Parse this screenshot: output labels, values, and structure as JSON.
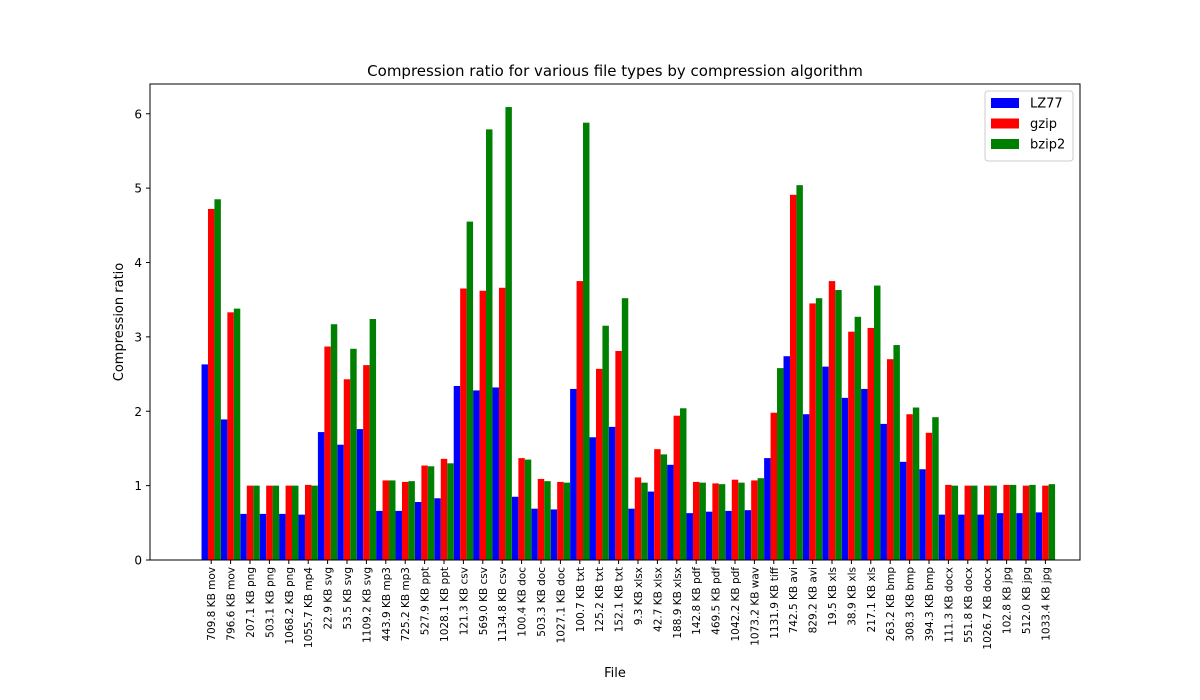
{
  "chart_data": {
    "type": "bar",
    "title": "Compression ratio for various file types by compression algorithm",
    "xlabel": "File",
    "ylabel": "Compression ratio",
    "ylim": [
      0,
      6.4
    ],
    "yticks": [
      0,
      1,
      2,
      3,
      4,
      5,
      6
    ],
    "grid": false,
    "legend_position": "top-right",
    "categories": [
      "709.8 KB mov",
      "796.6 KB mov",
      "207.1 KB png",
      "503.1 KB png",
      "1068.2 KB png",
      "1055.7 KB mp4",
      "22.9 KB svg",
      "53.5 KB svg",
      "1109.2 KB svg",
      "443.9 KB mp3",
      "725.2 KB mp3",
      "527.9 KB ppt",
      "1028.1 KB ppt",
      "121.3 KB csv",
      "569.0 KB csv",
      "1134.8 KB csv",
      "100.4 KB doc",
      "503.3 KB doc",
      "1027.1 KB doc",
      "100.7 KB txt",
      "125.2 KB txt",
      "152.1 KB txt",
      "9.3 KB xlsx",
      "42.7 KB xlsx",
      "188.9 KB xlsx",
      "142.8 KB pdf",
      "469.5 KB pdf",
      "1042.2 KB pdf",
      "1073.2 KB wav",
      "1131.9 KB tiff",
      "742.5 KB avi",
      "829.2 KB avi",
      "19.5 KB xls",
      "38.9 KB xls",
      "217.1 KB xls",
      "263.2 KB bmp",
      "308.3 KB bmp",
      "394.3 KB bmp",
      "111.3 KB docx",
      "551.8 KB docx",
      "1026.7 KB docx",
      "102.8 KB jpg",
      "512.0 KB jpg",
      "1033.4 KB jpg"
    ],
    "series": [
      {
        "name": "LZ77",
        "color": "#0000ff",
        "values": [
          2.63,
          1.89,
          0.62,
          0.62,
          0.62,
          0.61,
          1.72,
          1.55,
          1.76,
          0.66,
          0.66,
          0.78,
          0.83,
          2.34,
          2.28,
          2.32,
          0.85,
          0.69,
          0.68,
          2.3,
          1.65,
          1.79,
          0.69,
          0.92,
          1.28,
          0.63,
          0.65,
          0.66,
          0.67,
          1.37,
          2.74,
          1.96,
          2.6,
          2.18,
          2.3,
          1.83,
          1.32,
          1.22,
          0.61,
          0.61,
          0.61,
          0.63,
          0.63,
          0.64
        ]
      },
      {
        "name": "gzip",
        "color": "#ff0000",
        "values": [
          4.72,
          3.33,
          1.0,
          1.0,
          1.0,
          1.01,
          2.87,
          2.43,
          2.62,
          1.07,
          1.05,
          1.27,
          1.36,
          3.65,
          3.62,
          3.66,
          1.37,
          1.09,
          1.05,
          3.75,
          2.57,
          2.81,
          1.11,
          1.49,
          1.94,
          1.05,
          1.03,
          1.08,
          1.07,
          1.98,
          4.91,
          3.45,
          3.75,
          3.07,
          3.12,
          2.7,
          1.96,
          1.71,
          1.01,
          1.0,
          1.0,
          1.01,
          1.0,
          1.0
        ]
      },
      {
        "name": "bzip2",
        "color": "#008000",
        "values": [
          4.85,
          3.38,
          1.0,
          1.0,
          1.0,
          1.0,
          3.17,
          2.84,
          3.24,
          1.07,
          1.06,
          1.26,
          1.3,
          4.55,
          5.79,
          6.09,
          1.35,
          1.06,
          1.04,
          5.88,
          3.15,
          3.52,
          1.04,
          1.42,
          2.04,
          1.04,
          1.02,
          1.04,
          1.1,
          2.58,
          5.04,
          3.52,
          3.63,
          3.27,
          3.69,
          2.89,
          2.05,
          1.92,
          1.0,
          1.0,
          1.0,
          1.01,
          1.01,
          1.02
        ]
      }
    ]
  }
}
